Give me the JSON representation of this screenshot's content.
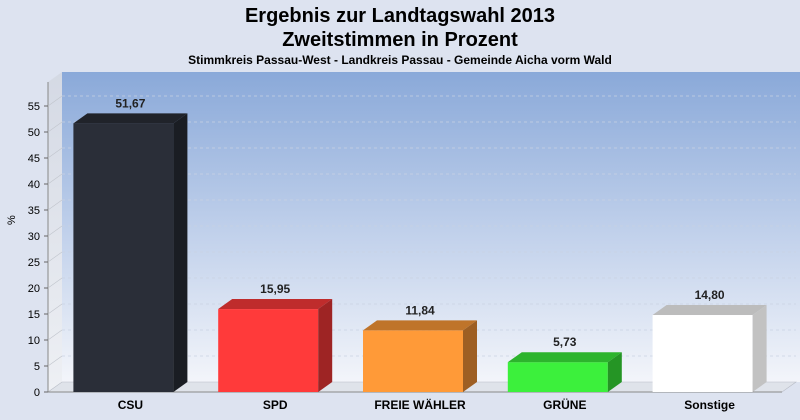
{
  "chart_data": {
    "type": "bar",
    "title": "Ergebnis zur Landtagswahl 2013",
    "subtitle": "Zweitstimmen in Prozent",
    "caption": "Stimmkreis Passau-West - Landkreis Passau - Gemeinde Aicha vorm Wald",
    "ylabel": "%",
    "categories": [
      "CSU",
      "SPD",
      "FREIE WÄHLER",
      "GRÜNE",
      "Sonstige"
    ],
    "values": [
      51.67,
      15.95,
      11.84,
      5.73,
      14.8
    ],
    "value_labels": [
      "51,67",
      "15,95",
      "11,84",
      "5,73",
      "14,80"
    ],
    "colors": [
      "#2a2e38",
      "#ff3a3a",
      "#ff9a38",
      "#3cf03c",
      "#ffffff"
    ],
    "ylim": [
      0,
      55
    ],
    "yticks": [
      0,
      5,
      10,
      15,
      20,
      25,
      30,
      35,
      40,
      45,
      50,
      55
    ],
    "grid": true
  }
}
